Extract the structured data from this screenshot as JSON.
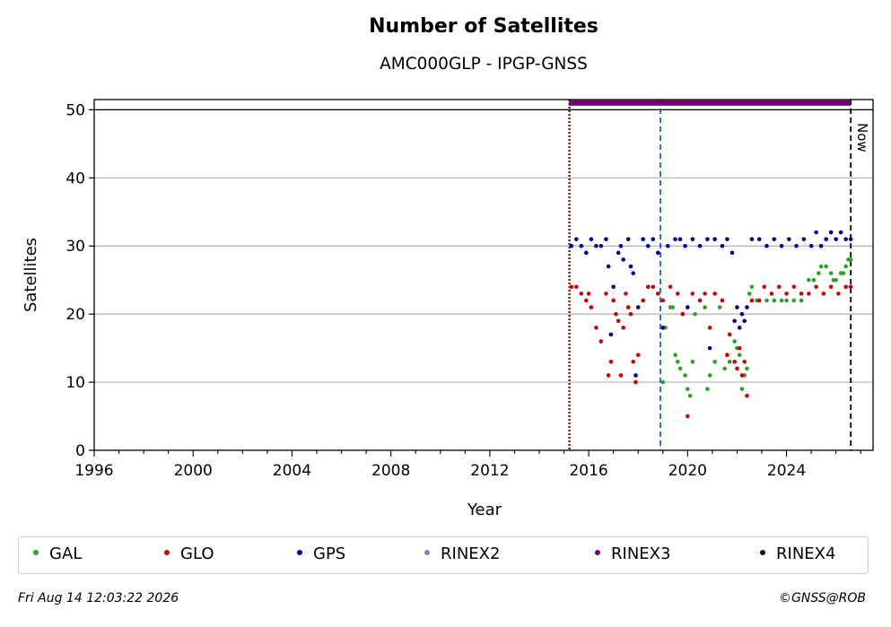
{
  "chart_data": {
    "type": "scatter",
    "title": "Number of Satellites",
    "subtitle": "AMC000GLP - IPGP-GNSS",
    "xlabel": "Year",
    "ylabel": "Satellites",
    "xlim": [
      1996,
      2027.5
    ],
    "ylim": [
      0,
      51.5
    ],
    "x_ticks": [
      1996,
      2000,
      2004,
      2008,
      2012,
      2016,
      2020,
      2024
    ],
    "y_ticks": [
      0,
      10,
      20,
      30,
      40,
      50
    ],
    "grid": "horizontal",
    "legend_position": "bottom",
    "vlines": [
      {
        "x": 2015.2,
        "color": "#2ca02c",
        "style": "dotted"
      },
      {
        "x": 2015.2,
        "color": "#cc0000",
        "style": "dotted"
      },
      {
        "x": 2018.9,
        "color": "#1f5fbf",
        "style": "dashed"
      },
      {
        "x": 2026.6,
        "color": "#000000",
        "style": "dashed",
        "label": "Now"
      }
    ],
    "hline": 50,
    "series": [
      {
        "name": "GAL",
        "color": "#2ca02c",
        "points": [
          [
            2019.0,
            10
          ],
          [
            2019.1,
            18
          ],
          [
            2019.3,
            21
          ],
          [
            2019.4,
            21
          ],
          [
            2019.5,
            14
          ],
          [
            2019.6,
            13
          ],
          [
            2019.7,
            12
          ],
          [
            2019.8,
            20
          ],
          [
            2019.9,
            11
          ],
          [
            2020.0,
            9
          ],
          [
            2020.1,
            8
          ],
          [
            2020.2,
            13
          ],
          [
            2020.3,
            20
          ],
          [
            2020.5,
            22
          ],
          [
            2020.7,
            21
          ],
          [
            2020.8,
            9
          ],
          [
            2020.9,
            11
          ],
          [
            2021.1,
            13
          ],
          [
            2021.3,
            21
          ],
          [
            2021.5,
            12
          ],
          [
            2021.7,
            13
          ],
          [
            2021.9,
            16
          ],
          [
            2022.0,
            15
          ],
          [
            2022.1,
            14
          ],
          [
            2022.2,
            9
          ],
          [
            2022.3,
            11
          ],
          [
            2022.4,
            12
          ],
          [
            2022.5,
            23
          ],
          [
            2022.6,
            24
          ],
          [
            2022.8,
            22
          ],
          [
            2023.2,
            22
          ],
          [
            2023.5,
            22
          ],
          [
            2023.8,
            22
          ],
          [
            2024.0,
            22
          ],
          [
            2024.3,
            22
          ],
          [
            2024.6,
            22
          ],
          [
            2024.9,
            25
          ],
          [
            2025.1,
            25
          ],
          [
            2025.3,
            26
          ],
          [
            2025.4,
            27
          ],
          [
            2025.6,
            27
          ],
          [
            2025.8,
            26
          ],
          [
            2025.9,
            25
          ],
          [
            2026.0,
            25
          ],
          [
            2026.2,
            26
          ],
          [
            2026.3,
            26
          ],
          [
            2026.4,
            27
          ],
          [
            2026.5,
            28
          ],
          [
            2026.6,
            28
          ]
        ]
      },
      {
        "name": "GLO",
        "color": "#cc0000",
        "points": [
          [
            2015.3,
            24
          ],
          [
            2015.5,
            24
          ],
          [
            2015.7,
            23
          ],
          [
            2015.9,
            22
          ],
          [
            2016.0,
            23
          ],
          [
            2016.1,
            21
          ],
          [
            2016.3,
            18
          ],
          [
            2016.5,
            16
          ],
          [
            2016.7,
            23
          ],
          [
            2016.8,
            11
          ],
          [
            2016.9,
            13
          ],
          [
            2017.0,
            22
          ],
          [
            2017.1,
            20
          ],
          [
            2017.2,
            19
          ],
          [
            2017.3,
            11
          ],
          [
            2017.4,
            18
          ],
          [
            2017.5,
            23
          ],
          [
            2017.6,
            21
          ],
          [
            2017.7,
            20
          ],
          [
            2017.8,
            13
          ],
          [
            2017.9,
            10
          ],
          [
            2018.0,
            14
          ],
          [
            2018.2,
            22
          ],
          [
            2018.4,
            24
          ],
          [
            2018.6,
            24
          ],
          [
            2018.8,
            23
          ],
          [
            2019.0,
            22
          ],
          [
            2019.3,
            24
          ],
          [
            2019.6,
            23
          ],
          [
            2019.8,
            20
          ],
          [
            2020.0,
            5
          ],
          [
            2020.2,
            23
          ],
          [
            2020.5,
            22
          ],
          [
            2020.7,
            23
          ],
          [
            2020.9,
            18
          ],
          [
            2021.1,
            23
          ],
          [
            2021.4,
            22
          ],
          [
            2021.6,
            14
          ],
          [
            2021.7,
            17
          ],
          [
            2021.9,
            13
          ],
          [
            2022.0,
            12
          ],
          [
            2022.1,
            15
          ],
          [
            2022.2,
            11
          ],
          [
            2022.3,
            13
          ],
          [
            2022.4,
            8
          ],
          [
            2022.6,
            22
          ],
          [
            2022.9,
            22
          ],
          [
            2023.1,
            24
          ],
          [
            2023.4,
            23
          ],
          [
            2023.7,
            24
          ],
          [
            2024.0,
            23
          ],
          [
            2024.3,
            24
          ],
          [
            2024.6,
            23
          ],
          [
            2024.9,
            23
          ],
          [
            2025.2,
            24
          ],
          [
            2025.5,
            23
          ],
          [
            2025.8,
            24
          ],
          [
            2026.1,
            23
          ],
          [
            2026.4,
            24
          ],
          [
            2026.6,
            24
          ]
        ]
      },
      {
        "name": "GPS",
        "color": "#00008b",
        "points": [
          [
            2015.3,
            30
          ],
          [
            2015.5,
            31
          ],
          [
            2015.7,
            30
          ],
          [
            2015.9,
            29
          ],
          [
            2016.1,
            31
          ],
          [
            2016.3,
            30
          ],
          [
            2016.5,
            30
          ],
          [
            2016.7,
            31
          ],
          [
            2016.8,
            27
          ],
          [
            2016.9,
            17
          ],
          [
            2017.0,
            24
          ],
          [
            2017.2,
            29
          ],
          [
            2017.3,
            30
          ],
          [
            2017.4,
            28
          ],
          [
            2017.6,
            31
          ],
          [
            2017.7,
            27
          ],
          [
            2017.8,
            26
          ],
          [
            2017.9,
            11
          ],
          [
            2018.0,
            21
          ],
          [
            2018.2,
            31
          ],
          [
            2018.4,
            30
          ],
          [
            2018.6,
            31
          ],
          [
            2018.8,
            29
          ],
          [
            2019.0,
            18
          ],
          [
            2019.2,
            30
          ],
          [
            2019.5,
            31
          ],
          [
            2019.7,
            31
          ],
          [
            2019.9,
            30
          ],
          [
            2020.0,
            21
          ],
          [
            2020.2,
            31
          ],
          [
            2020.5,
            30
          ],
          [
            2020.8,
            31
          ],
          [
            2020.9,
            15
          ],
          [
            2021.1,
            31
          ],
          [
            2021.4,
            30
          ],
          [
            2021.6,
            31
          ],
          [
            2021.8,
            29
          ],
          [
            2021.9,
            19
          ],
          [
            2022.0,
            21
          ],
          [
            2022.1,
            18
          ],
          [
            2022.2,
            20
          ],
          [
            2022.3,
            19
          ],
          [
            2022.4,
            21
          ],
          [
            2022.6,
            31
          ],
          [
            2022.9,
            31
          ],
          [
            2023.2,
            30
          ],
          [
            2023.5,
            31
          ],
          [
            2023.8,
            30
          ],
          [
            2024.1,
            31
          ],
          [
            2024.4,
            30
          ],
          [
            2024.7,
            31
          ],
          [
            2025.0,
            30
          ],
          [
            2025.2,
            32
          ],
          [
            2025.4,
            30
          ],
          [
            2025.6,
            31
          ],
          [
            2025.8,
            32
          ],
          [
            2026.0,
            31
          ],
          [
            2026.2,
            32
          ],
          [
            2026.4,
            31
          ],
          [
            2026.6,
            31
          ]
        ]
      },
      {
        "name": "RINEX2",
        "color": "#8c7fc0",
        "points": []
      },
      {
        "name": "RINEX3",
        "color": "#6a006a",
        "points": [],
        "bar": {
          "y": 51,
          "from": 2015.2,
          "to": 2026.6
        }
      },
      {
        "name": "RINEX4",
        "color": "#1a0a1a",
        "points": []
      }
    ]
  },
  "legend": [
    "GAL",
    "GLO",
    "GPS",
    "RINEX2",
    "RINEX3",
    "RINEX4"
  ],
  "footer": {
    "date": "Fri Aug 14 12:03:22 2026",
    "credit": "©GNSS@ROB"
  },
  "now_label": "Now"
}
